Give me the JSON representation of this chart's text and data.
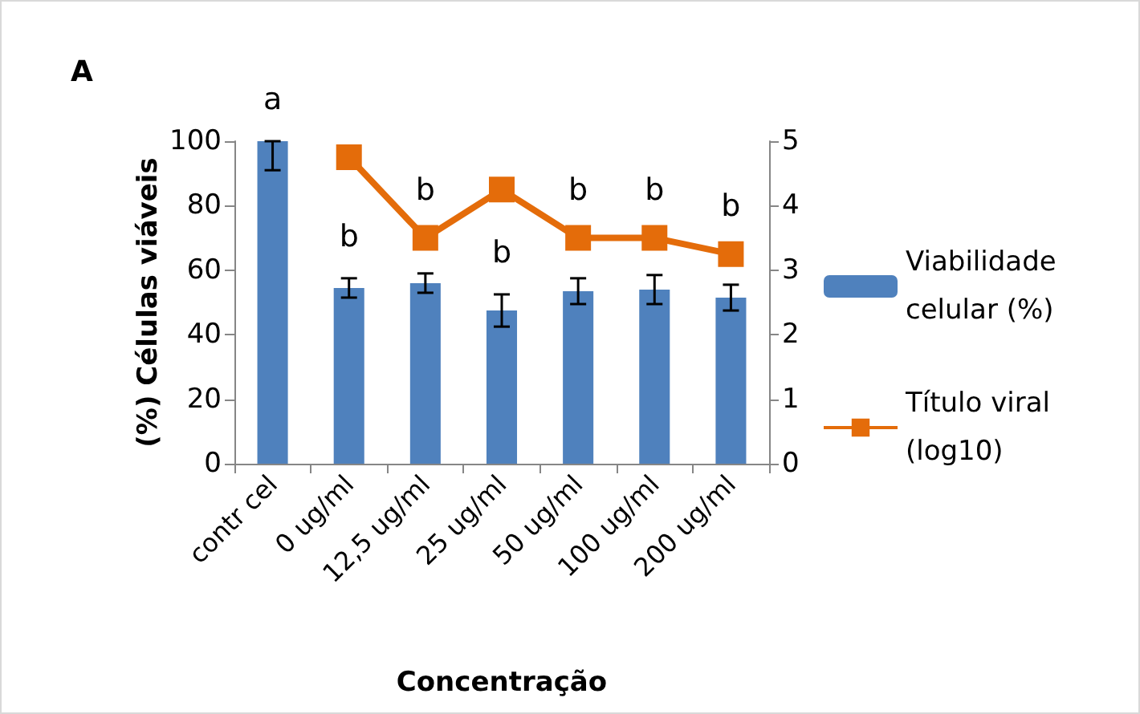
{
  "chart_data": {
    "type": "bar",
    "title": "A",
    "xlabel": "Concentração",
    "ylabel": "(%) Células viáveis",
    "categories": [
      "contr cel",
      "0 ug/ml",
      "12,5 ug/ml",
      "25 ug/ml",
      "50 ug/ml",
      "100 ug/ml",
      "200 ug/ml"
    ],
    "series": [
      {
        "name": "Viabilidade celular (%)",
        "color": "#4f81bd",
        "values": [
          100,
          54.5,
          56,
          47.5,
          53.5,
          54,
          51.5
        ],
        "errors": [
          [
            91,
            100
          ],
          3,
          3,
          5,
          4,
          4.5,
          4
        ]
      },
      {
        "name": "Título viral (log10)",
        "type": "line",
        "axis": "y2",
        "marker": "square",
        "color": "#e46c0a",
        "values": [
          null,
          4.75,
          3.5,
          4.25,
          3.5,
          3.5,
          3.25
        ]
      }
    ],
    "ylim": [
      0,
      100
    ],
    "yticks": [
      0,
      20,
      40,
      60,
      80,
      100
    ],
    "y2lim": [
      0,
      5
    ],
    "y2ticks": [
      0,
      1,
      2,
      3,
      4,
      5
    ],
    "grid": false,
    "legend": "right",
    "annotations": [
      "a",
      "b",
      "b",
      "b",
      "b",
      "b",
      "b"
    ]
  }
}
